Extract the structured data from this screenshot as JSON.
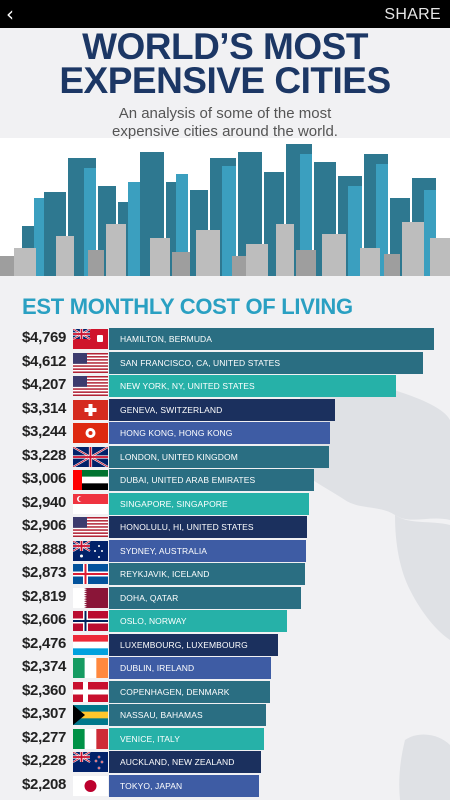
{
  "header": {
    "back_icon": "chevron-left-icon",
    "share_label": "SHARE"
  },
  "title_line1": "WORLD’S MOST",
  "title_line2": "EXPENSIVE CITIES",
  "subtitle_line1": "An analysis of some of the most",
  "subtitle_line2": "expensive cities around the world.",
  "chart_data": {
    "type": "bar",
    "orientation": "horizontal",
    "title": "EST MONTHLY COST OF LIVING",
    "categories": [
      "HAMILTON, BERMUDA",
      "SAN FRANCISCO, CA, UNITED STATES",
      "NEW YORK, NY, UNITED STATES",
      "GENEVA, SWITZERLAND",
      "HONG KONG, HONG KONG",
      "LONDON, UNITED KINGDOM",
      "DUBAI, UNITED ARAB EMIRATES",
      "SINGAPORE, SINGAPORE",
      "HONOLULU, HI, UNITED STATES",
      "SYDNEY, AUSTRALIA",
      "REYKJAVIK, ICELAND",
      "DOHA, QATAR",
      "OSLO, NORWAY",
      "LUXEMBOURG, LUXEMBOURG",
      "DUBLIN, IRELAND",
      "COPENHAGEN, DENMARK",
      "NASSAU, BAHAMAS",
      "VENICE, ITALY",
      "AUCKLAND, NEW ZEALAND",
      "TOKYO, JAPAN"
    ],
    "values": [
      4769,
      4612,
      4207,
      3314,
      3244,
      3228,
      3006,
      2940,
      2906,
      2888,
      2873,
      2819,
      2606,
      2476,
      2374,
      2360,
      2307,
      2277,
      2228,
      2208
    ],
    "value_labels": [
      "$4,769",
      "$4,612",
      "$4,207",
      "$3,314",
      "$3,244",
      "$3,228",
      "$3,006",
      "$2,940",
      "$2,906",
      "$2,888",
      "$2,873",
      "$2,819",
      "$2,606",
      "$2,476",
      "$2,374",
      "$2,360",
      "$2,307",
      "$2,277",
      "$2,228",
      "$2,208"
    ],
    "flags": [
      "bermuda",
      "united-states",
      "united-states",
      "switzerland",
      "hong-kong",
      "united-kingdom",
      "united-arab-emirates",
      "singapore",
      "united-states",
      "australia",
      "iceland",
      "qatar",
      "norway",
      "luxembourg",
      "ireland",
      "denmark",
      "bahamas",
      "italy",
      "new-zealand",
      "japan"
    ],
    "bar_colors": [
      "#2a6e82",
      "#2a6e82",
      "#26b1a8",
      "#1b305e",
      "#3e5ca4",
      "#2a6e82",
      "#2a6e82",
      "#26b1a8",
      "#1b305e",
      "#3e5ca4",
      "#2a6e82",
      "#2a6e82",
      "#26b1a8",
      "#1b305e",
      "#3e5ca4",
      "#2a6e82",
      "#2a6e82",
      "#26b1a8",
      "#1b305e",
      "#3e5ca4"
    ]
  }
}
